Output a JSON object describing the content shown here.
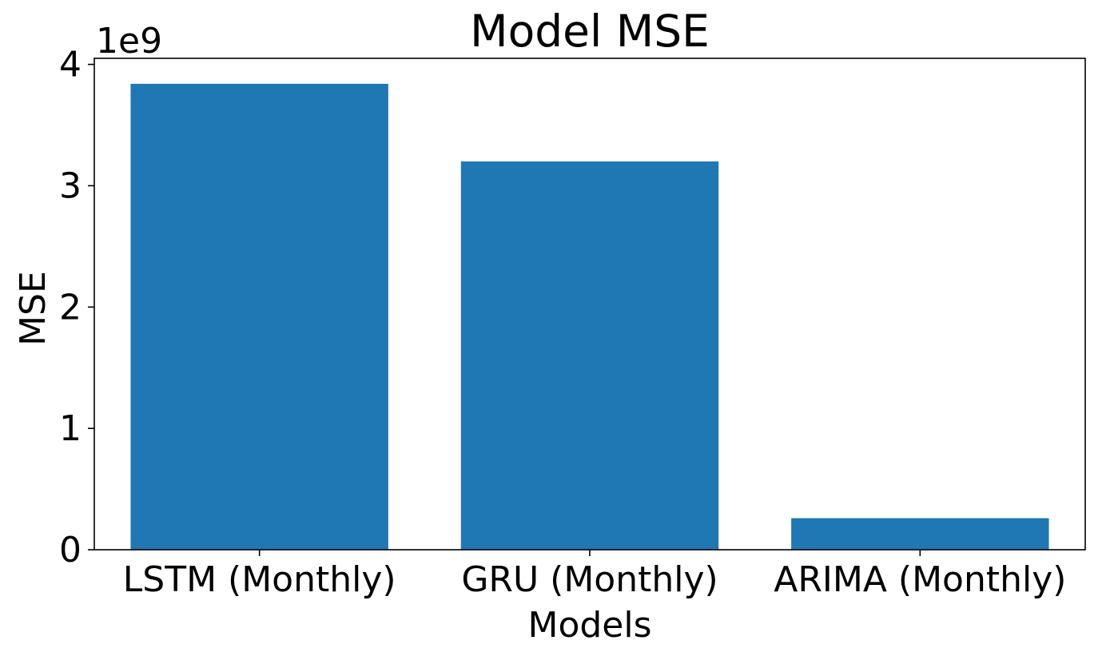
{
  "chart_data": {
    "type": "bar",
    "title": "Model MSE",
    "xlabel": "Models",
    "ylabel": "MSE",
    "y_offset_label": "1e9",
    "categories": [
      "LSTM (Monthly)",
      "GRU (Monthly)",
      "ARIMA (Monthly)"
    ],
    "values": [
      3.84,
      3.2,
      0.26
    ],
    "value_scale": 1000000000,
    "ylim": [
      0,
      4.05
    ],
    "yticks": [
      0,
      1,
      2,
      3,
      4
    ],
    "ytick_labels": [
      "0",
      "1",
      "2",
      "3",
      "4"
    ],
    "bar_color": "#1f77b4",
    "grid": false,
    "legend": false
  }
}
